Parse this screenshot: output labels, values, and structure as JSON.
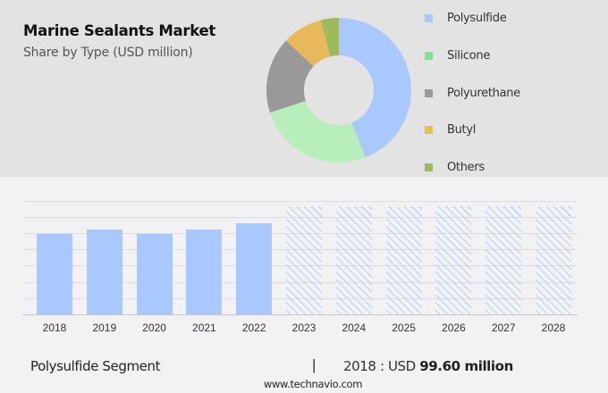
{
  "header": {
    "title": "Marine Sealants Market",
    "subtitle": "Share by Type (USD million)"
  },
  "legend": {
    "items": [
      {
        "label": "Polysulfide",
        "color": "#a8c8ff"
      },
      {
        "label": "Silicone",
        "color": "#7ee39b"
      },
      {
        "label": "Polyurethane",
        "color": "#999999"
      },
      {
        "label": "Butyl",
        "color": "#e6c14d"
      },
      {
        "label": "Others",
        "color": "#9dbb5a"
      }
    ]
  },
  "footer": {
    "segment": "Polysulfide Segment",
    "separator": "|",
    "value_prefix": "2018 : USD",
    "value": "99.60 million",
    "url": "www.technavio.com"
  },
  "chart_data": [
    {
      "type": "pie",
      "title": "Marine Sealants Market",
      "subtitle": "Share by Type (USD million)",
      "donut": true,
      "categories": [
        "Polysulfide",
        "Silicone",
        "Polyurethane",
        "Butyl",
        "Others"
      ],
      "values": [
        44,
        26,
        17,
        9,
        4
      ],
      "colors": [
        "#a8c8ff",
        "#b8eebb",
        "#999999",
        "#e8b95a",
        "#9dbb5a"
      ],
      "legend_position": "right"
    },
    {
      "type": "bar",
      "title": "Polysulfide Segment",
      "categories": [
        "2018",
        "2019",
        "2020",
        "2021",
        "2022",
        "2023",
        "2024",
        "2025",
        "2026",
        "2027",
        "2028"
      ],
      "values": [
        99.6,
        105,
        99.6,
        105,
        113,
        null,
        null,
        null,
        null,
        null,
        null
      ],
      "forecast": [
        "2023",
        "2024",
        "2025",
        "2026",
        "2027",
        "2028"
      ],
      "xlabel": "",
      "ylabel": "",
      "ylim": [
        0,
        140
      ],
      "grid": true,
      "annotation": "2018 : USD 99.60 million"
    }
  ]
}
